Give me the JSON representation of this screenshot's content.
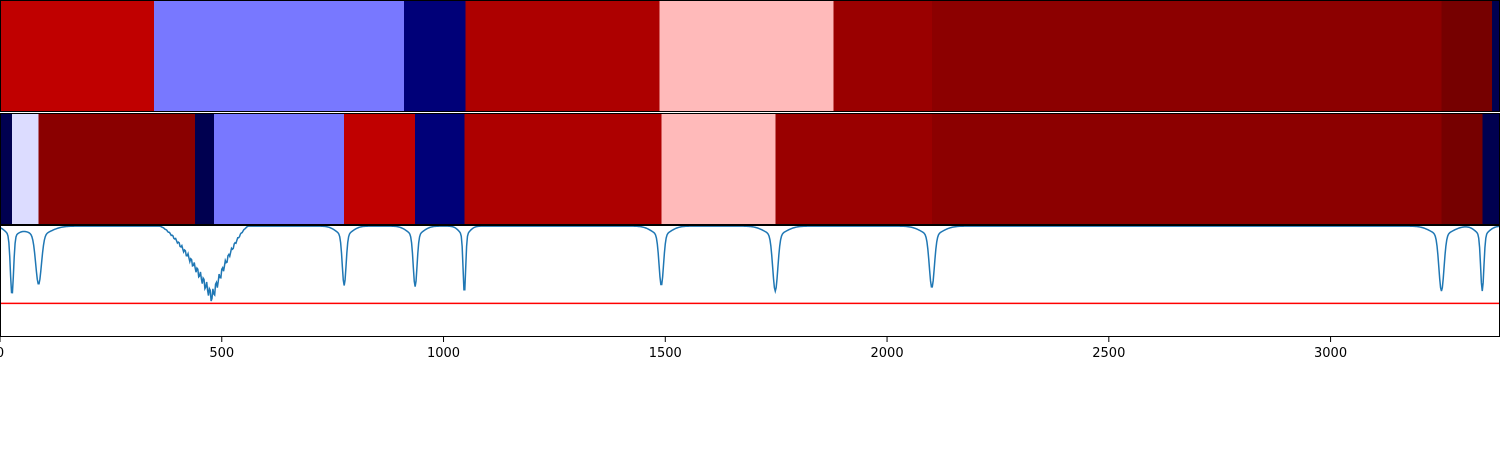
{
  "chart_data": [
    {
      "type": "heatmap",
      "name": "segmentation-ground-truth",
      "segments": [
        {
          "start": 0,
          "end": 347,
          "color": "#c00000"
        },
        {
          "start": 347,
          "end": 911,
          "color": "#7878ff"
        },
        {
          "start": 911,
          "end": 1050,
          "color": "#000078"
        },
        {
          "start": 1050,
          "end": 1487,
          "color": "#ad0000"
        },
        {
          "start": 1487,
          "end": 1879,
          "color": "#ffbaba"
        },
        {
          "start": 1879,
          "end": 2101,
          "color": "#9a0000"
        },
        {
          "start": 2101,
          "end": 3250,
          "color": "#8c0000"
        },
        {
          "start": 3250,
          "end": 3364,
          "color": "#760000"
        },
        {
          "start": 3364,
          "end": 3382,
          "color": "#000050"
        }
      ]
    },
    {
      "type": "heatmap",
      "name": "segmentation-prediction",
      "segments": [
        {
          "start": 0,
          "end": 27,
          "color": "#000050"
        },
        {
          "start": 27,
          "end": 87,
          "color": "#dcdcff"
        },
        {
          "start": 87,
          "end": 440,
          "color": "#8a0000"
        },
        {
          "start": 440,
          "end": 483,
          "color": "#000050"
        },
        {
          "start": 483,
          "end": 776,
          "color": "#7878ff"
        },
        {
          "start": 776,
          "end": 936,
          "color": "#c00000"
        },
        {
          "start": 936,
          "end": 1047,
          "color": "#000078"
        },
        {
          "start": 1047,
          "end": 1491,
          "color": "#ad0000"
        },
        {
          "start": 1491,
          "end": 1748,
          "color": "#ffbaba"
        },
        {
          "start": 1748,
          "end": 2101,
          "color": "#9a0000"
        },
        {
          "start": 2101,
          "end": 3250,
          "color": "#8c0000"
        },
        {
          "start": 3250,
          "end": 3342,
          "color": "#760000"
        },
        {
          "start": 3342,
          "end": 3382,
          "color": "#000050"
        }
      ]
    },
    {
      "type": "line",
      "name": "boundary-confidence",
      "xlim": [
        0,
        3382
      ],
      "ylim": [
        0,
        1
      ],
      "threshold": 0.3,
      "line_color": "#1f77b4",
      "threshold_color": "#ff0000",
      "dips": [
        {
          "x": 27,
          "depth": 0.53,
          "width": 5
        },
        {
          "x": 87,
          "depth": 0.44,
          "width": 9
        },
        {
          "x": 776,
          "depth": 0.45,
          "width": 6
        },
        {
          "x": 936,
          "depth": 0.46,
          "width": 6
        },
        {
          "x": 1047,
          "depth": 0.52,
          "width": 4
        },
        {
          "x": 1491,
          "depth": 0.45,
          "width": 7
        },
        {
          "x": 1748,
          "depth": 0.5,
          "width": 8
        },
        {
          "x": 2101,
          "depth": 0.47,
          "width": 8
        },
        {
          "x": 3250,
          "depth": 0.5,
          "width": 8
        },
        {
          "x": 3342,
          "depth": 0.5,
          "width": 5
        }
      ],
      "trough": {
        "start": 360,
        "end": 560,
        "min_x": 478,
        "min_y": 0.29
      },
      "xticks": [
        0,
        500,
        1000,
        1500,
        2000,
        2500,
        3000
      ],
      "xtick_labels": [
        "0",
        "500",
        "1000",
        "1500",
        "2000",
        "2500",
        "3000"
      ]
    }
  ]
}
